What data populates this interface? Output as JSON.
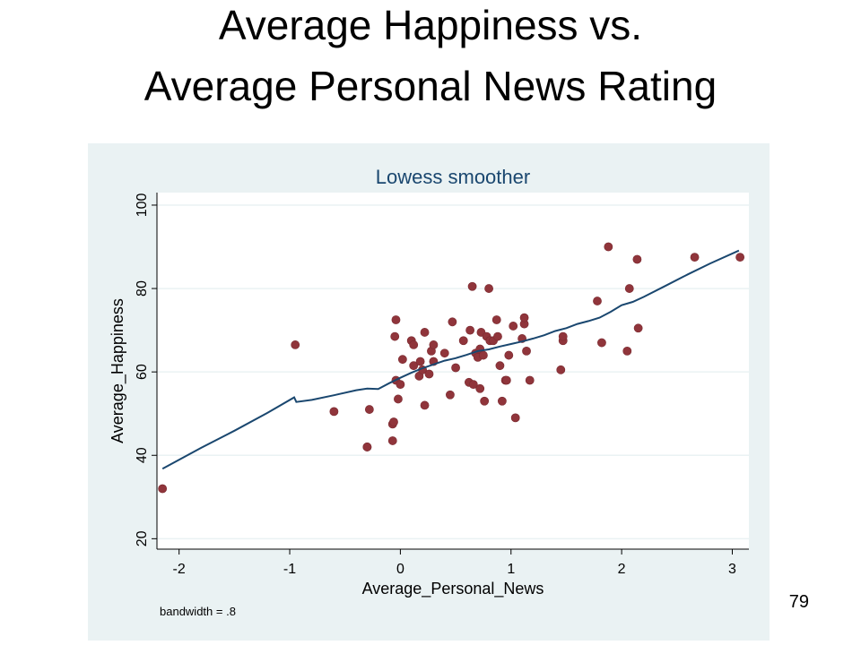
{
  "slide": {
    "title_line1": "Average Happiness vs.",
    "title_line2": "Average Personal News Rating",
    "page_number": "79"
  },
  "colors": {
    "panel_background": "#eaf2f3",
    "plot_background": "#ffffff",
    "grid": "#eaf2f3",
    "chart_title": "#1a476f",
    "marker": "#90353b",
    "smoother_line": "#1a476f",
    "axis": "#000000"
  },
  "chart_data": {
    "type": "scatter",
    "title": "Lowess smoother",
    "xlabel": "Average_Personal_News",
    "ylabel": "Average_Happiness",
    "note": "bandwidth = .8",
    "xlim": [
      -2.2,
      3.15
    ],
    "ylim": [
      17.5,
      103
    ],
    "xticks": [
      -2,
      -1,
      0,
      1,
      2,
      3
    ],
    "yticks": [
      20,
      40,
      60,
      80,
      100
    ],
    "grid": true,
    "legend": "none",
    "series": [
      {
        "type": "scatter",
        "x": [
          -2.15,
          -0.95,
          -0.6,
          -0.3,
          -0.3,
          -0.28,
          -0.07,
          -0.07,
          -0.06,
          -0.05,
          -0.04,
          -0.04,
          -0.02,
          0.0,
          0.02,
          0.1,
          0.12,
          0.12,
          0.17,
          0.18,
          0.2,
          0.22,
          0.22,
          0.26,
          0.28,
          0.3,
          0.3,
          0.4,
          0.45,
          0.47,
          0.5,
          0.57,
          0.62,
          0.63,
          0.65,
          0.66,
          0.68,
          0.7,
          0.72,
          0.72,
          0.73,
          0.75,
          0.76,
          0.78,
          0.8,
          0.81,
          0.84,
          0.87,
          0.88,
          0.9,
          0.92,
          0.95,
          0.96,
          0.98,
          1.02,
          1.04,
          1.1,
          1.12,
          1.12,
          1.14,
          1.17,
          1.45,
          1.47,
          1.47,
          1.78,
          1.82,
          1.88,
          2.05,
          2.07,
          2.14,
          2.15,
          2.66,
          3.07
        ],
        "y": [
          32,
          66.5,
          50.5,
          42,
          42,
          51,
          43.5,
          47.5,
          48,
          68.5,
          58,
          72.5,
          53.5,
          57,
          63,
          67.5,
          61.5,
          66.5,
          59,
          62.5,
          60.5,
          69.5,
          52,
          59.5,
          65,
          66.5,
          62.5,
          64.5,
          54.5,
          72,
          61,
          67.5,
          57.5,
          70,
          80.5,
          57,
          64.5,
          63.5,
          65.5,
          56,
          69.5,
          64,
          53,
          68.5,
          80,
          67.5,
          67.5,
          72.5,
          68.5,
          61.5,
          53,
          58,
          58,
          64,
          71,
          49,
          68,
          71.5,
          73,
          65,
          58,
          60.5,
          67.5,
          68.5,
          77,
          67,
          90,
          65,
          80,
          87,
          70.5,
          87.5,
          87.5
        ]
      },
      {
        "type": "line",
        "x": [
          -2.15,
          -1.8,
          -1.5,
          -1.2,
          -0.96,
          -0.94,
          -0.8,
          -0.6,
          -0.4,
          -0.3,
          -0.2,
          -0.1,
          0.0,
          0.1,
          0.2,
          0.3,
          0.4,
          0.5,
          0.6,
          0.7,
          0.8,
          0.9,
          1.0,
          1.1,
          1.2,
          1.3,
          1.4,
          1.5,
          1.6,
          1.7,
          1.8,
          1.9,
          2.0,
          2.1,
          2.2,
          2.4,
          2.6,
          2.8,
          3.06
        ],
        "y": [
          36.8,
          41.8,
          45.9,
          50.2,
          53.9,
          52.8,
          53.3,
          54.4,
          55.6,
          56,
          55.9,
          57.3,
          58.6,
          59.8,
          60.9,
          61.8,
          62.7,
          63.3,
          64.1,
          65,
          65.4,
          66.1,
          66.7,
          67.3,
          68,
          68.8,
          69.8,
          70.5,
          71.5,
          72.2,
          73,
          74.4,
          76,
          76.8,
          78,
          80.7,
          83.4,
          86,
          89.1
        ]
      }
    ]
  }
}
